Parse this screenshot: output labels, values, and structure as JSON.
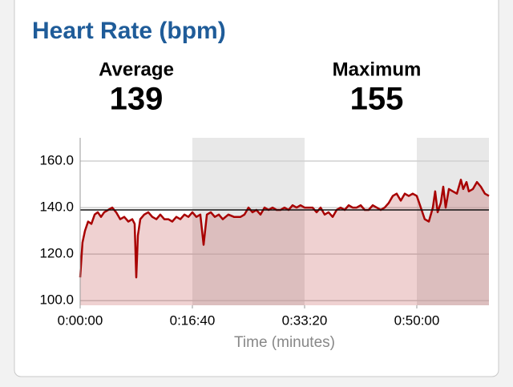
{
  "chart_data": {
    "type": "line",
    "title": "Heart Rate (bpm)",
    "summary": [
      {
        "label": "Average",
        "value": 139
      },
      {
        "label": "Maximum",
        "value": 155
      }
    ],
    "x_label": "Time (minutes)",
    "xlim": [
      0,
      3643
    ],
    "xticks": [
      {
        "value": 0,
        "label": "0:00:00"
      },
      {
        "value": 1000,
        "label": "0:16:40"
      },
      {
        "value": 2000,
        "label": "0:33:20"
      },
      {
        "value": 3000,
        "label": "0:50:00"
      }
    ],
    "ylim": [
      98,
      170
    ],
    "yticks": [
      {
        "value": 100,
        "label": "100.0"
      },
      {
        "value": 120,
        "label": "120.0"
      },
      {
        "value": 140,
        "label": "140.0"
      },
      {
        "value": 160,
        "label": "160.0"
      }
    ],
    "grid": true,
    "series": [
      {
        "color": "#a80000",
        "x": [
          0,
          21,
          43,
          71,
          100,
          129,
          157,
          186,
          214,
          250,
          286,
          321,
          357,
          393,
          429,
          464,
          486,
          500,
          514,
          536,
          571,
          607,
          643,
          679,
          714,
          750,
          786,
          821,
          857,
          893,
          929,
          964,
          1000,
          1036,
          1071,
          1100,
          1129,
          1164,
          1200,
          1236,
          1271,
          1321,
          1371,
          1429,
          1464,
          1500,
          1536,
          1571,
          1607,
          1643,
          1679,
          1714,
          1750,
          1786,
          1821,
          1857,
          1893,
          1929,
          1964,
          2000,
          2036,
          2071,
          2107,
          2143,
          2179,
          2214,
          2250,
          2286,
          2321,
          2357,
          2393,
          2429,
          2464,
          2500,
          2536,
          2571,
          2607,
          2643,
          2679,
          2714,
          2750,
          2786,
          2821,
          2857,
          2893,
          2929,
          2964,
          3000,
          3036,
          3071,
          3107,
          3143,
          3164,
          3186,
          3214,
          3236,
          3257,
          3286,
          3321,
          3357,
          3393,
          3414,
          3443,
          3464,
          3500,
          3536,
          3571,
          3607,
          3643
        ],
        "values": [
          110,
          125,
          130,
          134,
          133,
          137,
          138,
          136,
          138,
          139,
          140,
          138,
          135,
          136,
          134,
          135,
          133,
          110,
          128,
          135,
          137,
          138,
          136,
          135,
          137,
          135,
          135,
          134,
          136,
          135,
          137,
          136,
          138,
          136,
          137,
          124,
          137,
          138,
          136,
          137,
          135,
          137,
          136,
          136,
          137,
          140,
          138,
          139,
          137,
          140,
          139,
          140,
          139,
          139,
          140,
          139,
          141,
          140,
          141,
          140,
          140,
          140,
          138,
          140,
          137,
          138,
          136,
          139,
          140,
          139,
          141,
          140,
          140,
          141,
          139,
          139,
          141,
          140,
          139,
          140,
          142,
          145,
          146,
          143,
          146,
          145,
          146,
          145,
          140,
          135,
          134,
          140,
          147,
          138,
          142,
          149,
          140,
          148,
          147,
          146,
          152,
          148,
          151,
          147,
          148,
          151,
          149,
          146,
          145
        ]
      }
    ]
  }
}
